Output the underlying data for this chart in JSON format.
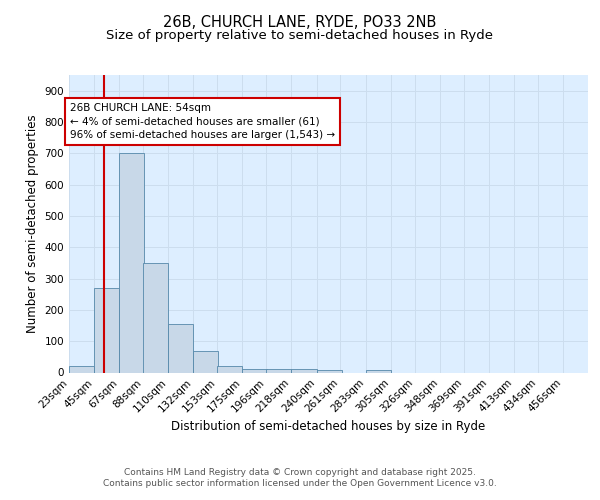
{
  "title": "26B, CHURCH LANE, RYDE, PO33 2NB",
  "subtitle": "Size of property relative to semi-detached houses in Ryde",
  "xlabel": "Distribution of semi-detached houses by size in Ryde",
  "ylabel": "Number of semi-detached properties",
  "bin_labels": [
    "23sqm",
    "45sqm",
    "67sqm",
    "88sqm",
    "110sqm",
    "132sqm",
    "153sqm",
    "175sqm",
    "196sqm",
    "218sqm",
    "240sqm",
    "261sqm",
    "283sqm",
    "305sqm",
    "326sqm",
    "348sqm",
    "369sqm",
    "391sqm",
    "413sqm",
    "434sqm",
    "456sqm"
  ],
  "bin_edges": [
    23,
    45,
    67,
    88,
    110,
    132,
    153,
    175,
    196,
    218,
    240,
    261,
    283,
    305,
    326,
    348,
    369,
    391,
    413,
    434,
    456
  ],
  "bar_heights": [
    20,
    270,
    700,
    350,
    155,
    68,
    22,
    10,
    10,
    12,
    8,
    0,
    8,
    0,
    0,
    0,
    0,
    0,
    0,
    0
  ],
  "bar_color": "#c8d8e8",
  "bar_edge_color": "#5588aa",
  "grid_color": "#ccddee",
  "bg_color": "#ddeeff",
  "property_size": 54,
  "red_line_color": "#cc0000",
  "annotation_text": "26B CHURCH LANE: 54sqm\n← 4% of semi-detached houses are smaller (61)\n96% of semi-detached houses are larger (1,543) →",
  "annotation_box_color": "#cc0000",
  "ylim": [
    0,
    950
  ],
  "yticks": [
    0,
    100,
    200,
    300,
    400,
    500,
    600,
    700,
    800,
    900
  ],
  "footer_line1": "Contains HM Land Registry data © Crown copyright and database right 2025.",
  "footer_line2": "Contains public sector information licensed under the Open Government Licence v3.0.",
  "title_fontsize": 10.5,
  "subtitle_fontsize": 9.5,
  "axis_label_fontsize": 8.5,
  "tick_fontsize": 7.5,
  "annotation_fontsize": 7.5,
  "footer_fontsize": 6.5
}
